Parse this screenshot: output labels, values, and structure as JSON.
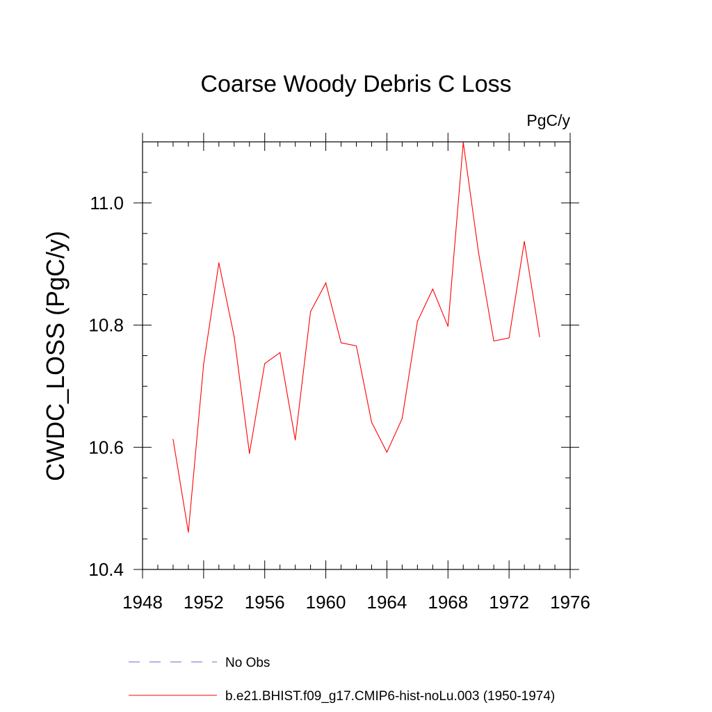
{
  "chart_data": {
    "type": "line",
    "title": "Coarse Woody Debris C Loss",
    "units": "PgC/y",
    "ylabel": "CWDC_LOSS  (PgC/y)",
    "xlabel": "",
    "xlim": [
      1948,
      1976
    ],
    "ylim": [
      10.4,
      11.1
    ],
    "xticks": [
      1948,
      1952,
      1956,
      1960,
      1964,
      1968,
      1972,
      1976
    ],
    "yticks": [
      10.4,
      10.6,
      10.8,
      11.0
    ],
    "ytick_labels": [
      "10.4",
      "10.6",
      "10.8",
      "11.0"
    ],
    "grid": false,
    "legend_position": "bottom",
    "series": [
      {
        "name": "b.e21.BHIST.f09_g17.CMIP6-hist-noLu.003 (1950-1974)",
        "color": "#ff0000",
        "style": "solid",
        "x": [
          1950,
          1951,
          1952,
          1953,
          1954,
          1955,
          1956,
          1957,
          1958,
          1959,
          1960,
          1961,
          1962,
          1963,
          1964,
          1965,
          1966,
          1967,
          1968,
          1969,
          1970,
          1971,
          1972,
          1973,
          1974
        ],
        "values": [
          10.613,
          10.461,
          10.736,
          10.902,
          10.781,
          10.59,
          10.737,
          10.755,
          10.612,
          10.822,
          10.869,
          10.771,
          10.766,
          10.641,
          10.592,
          10.647,
          10.806,
          10.859,
          10.798,
          11.099,
          10.919,
          10.774,
          10.779,
          10.937,
          10.781
        ]
      }
    ],
    "legend": [
      {
        "label": "No Obs",
        "color": "#6a6ac8",
        "style": "dashed"
      },
      {
        "label": "b.e21.BHIST.f09_g17.CMIP6-hist-noLu.003 (1950-1974)",
        "color": "#ff0000",
        "style": "solid"
      }
    ]
  }
}
